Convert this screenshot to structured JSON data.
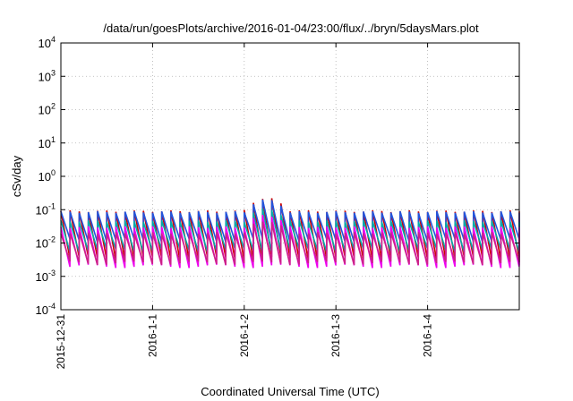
{
  "chart_data": {
    "type": "line",
    "title": "/data/run/goesPlots/archive/2016-01-04/23:00/flux/../bryn/5daysMars.plot",
    "xlabel": "Coordinated Universal Time (UTC)",
    "ylabel": "cSv/day",
    "y_scale": "log",
    "ylim": [
      0.0001,
      10000
    ],
    "y_ticks": [
      {
        "base": "10",
        "exp": "-4",
        "value": 0.0001
      },
      {
        "base": "10",
        "exp": "-3",
        "value": 0.001
      },
      {
        "base": "10",
        "exp": "-2",
        "value": 0.01
      },
      {
        "base": "10",
        "exp": "-1",
        "value": 0.1
      },
      {
        "base": "10",
        "exp": "0",
        "value": 1
      },
      {
        "base": "10",
        "exp": "1",
        "value": 10
      },
      {
        "base": "10",
        "exp": "2",
        "value": 100
      },
      {
        "base": "10",
        "exp": "3",
        "value": 1000
      },
      {
        "base": "10",
        "exp": "4",
        "value": 10000
      }
    ],
    "xlim": [
      "2015-12-31",
      "2016-01-05"
    ],
    "x_ticks": [
      "2015-12-31",
      "2016-1-1",
      "2016-1-2",
      "2016-1-3",
      "2016-1-4"
    ],
    "grid": true,
    "pattern": {
      "period_hours": 2.4,
      "note_visible": "sawtooth daily-periodic flux curves",
      "enhanced_window": [
        "2016-01-02",
        "2016-01-02T16:00"
      ]
    },
    "series": [
      {
        "color": "#cc0000",
        "peak": 0.09,
        "trough": 0.0035
      },
      {
        "color": "#2255dd",
        "peak": 0.085,
        "trough": 0.012
      },
      {
        "color": "#00aaaa",
        "peak": 0.045,
        "trough": 0.006
      },
      {
        "color": "#ee00ee",
        "peak": 0.03,
        "trough": 0.002
      },
      {
        "color": "#cc2288",
        "peak": 0.02,
        "trough": 0.0025
      }
    ]
  }
}
